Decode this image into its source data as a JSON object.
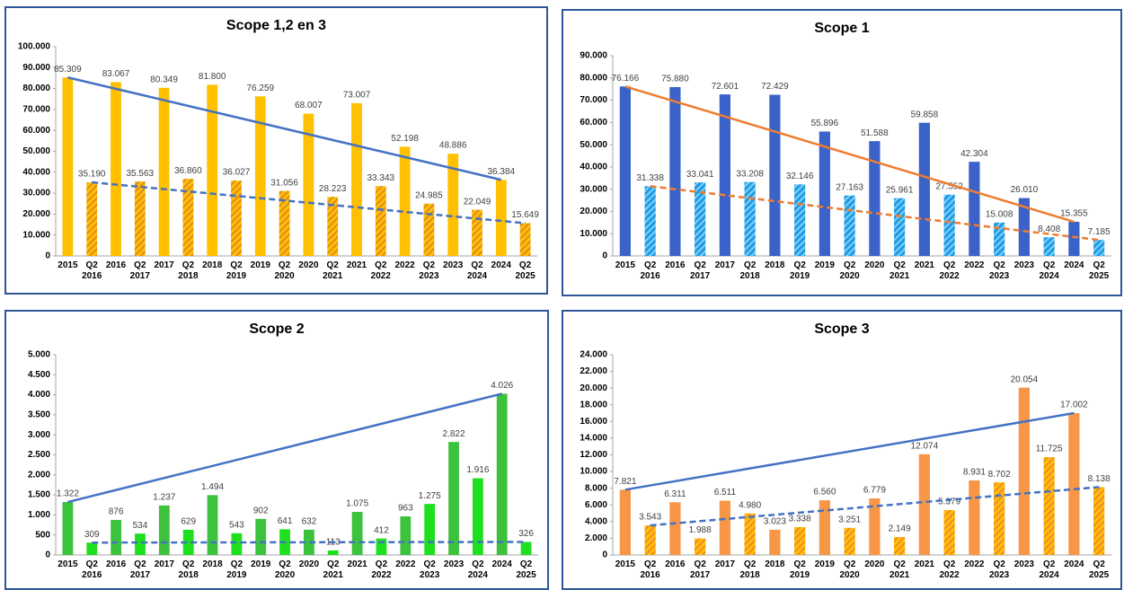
{
  "chart_data": [
    {
      "type": "bar",
      "title": "Scope 1,2 en 3",
      "categories": [
        "2015",
        "Q2 2016",
        "2016",
        "Q2 2017",
        "2017",
        "Q2 2018",
        "2018",
        "Q2 2019",
        "2019",
        "Q2 2020",
        "2020",
        "Q2 2021",
        "2021",
        "Q2 2022",
        "2022",
        "Q2 2023",
        "2023",
        "Q2 2024",
        "2024",
        "Q2 2025"
      ],
      "values": [
        85309,
        35190,
        83067,
        35563,
        80349,
        36860,
        81800,
        36027,
        76259,
        31056,
        68007,
        28223,
        73007,
        33343,
        52198,
        24985,
        48886,
        22049,
        36384,
        15649
      ],
      "value_labels": [
        "85.309",
        "35.190",
        "83.067",
        "35.563",
        "80.349",
        "36.860",
        "81.800",
        "36.027",
        "76.259",
        "31.056",
        "68.007",
        "28.223",
        "73.007",
        "33.343",
        "52.198",
        "24.985",
        "48.886",
        "22.049",
        "36.384",
        "15.649"
      ],
      "bar_colors": [
        "#ffc000",
        "#ffc000"
      ],
      "hatch_color": "#e08a1e",
      "trend_color": "#4472c4",
      "ylim": [
        0,
        100000
      ],
      "yticks": [
        0,
        {
          "value": 10000,
          "label": "10.000"
        },
        {
          "value": 20000,
          "label": "20.000"
        },
        {
          "value": 30000,
          "label": "30.000"
        },
        {
          "value": 40000,
          "label": "40.000"
        },
        {
          "value": 50000,
          "label": "50.000"
        },
        {
          "value": 60000,
          "label": "60.000"
        },
        {
          "value": 70000,
          "label": "70.000"
        },
        {
          "value": 80000,
          "label": "80.000"
        },
        {
          "value": 90000,
          "label": "90.000"
        },
        {
          "value": 100000,
          "label": "100.000"
        }
      ]
    },
    {
      "type": "bar",
      "title": "Scope 1",
      "categories": [
        "2015",
        "Q2 2016",
        "2016",
        "Q2 2017",
        "2017",
        "Q2 2018",
        "2018",
        "Q2 2019",
        "2019",
        "Q2 2020",
        "2020",
        "Q2 2021",
        "2021",
        "Q2 2022",
        "2022",
        "Q2 2023",
        "2023",
        "Q2 2024",
        "2024",
        "Q2 2025"
      ],
      "values": [
        76166,
        31338,
        75880,
        33041,
        72601,
        33208,
        72429,
        32146,
        55896,
        27163,
        51588,
        25961,
        59858,
        27552,
        42304,
        15008,
        26010,
        8408,
        15355,
        7185
      ],
      "value_labels": [
        "76.166",
        "31.338",
        "75.880",
        "33.041",
        "72.601",
        "33.208",
        "72.429",
        "32.146",
        "55.896",
        "27.163",
        "51.588",
        "25.961",
        "59.858",
        "27.552",
        "42.304",
        "15.008",
        "26.010",
        "8.408",
        "15.355",
        "7.185"
      ],
      "bar_colors": [
        "#3a62c8",
        "#1e9be0"
      ],
      "hatch_color": "#7fd0ff",
      "trend_color": "#ed7d31",
      "ylim": [
        0,
        90000
      ],
      "yticks": [
        0,
        {
          "value": 10000,
          "label": "10.000"
        },
        {
          "value": 20000,
          "label": "20.000"
        },
        {
          "value": 30000,
          "label": "30.000"
        },
        {
          "value": 40000,
          "label": "40.000"
        },
        {
          "value": 50000,
          "label": "50.000"
        },
        {
          "value": 60000,
          "label": "60.000"
        },
        {
          "value": 70000,
          "label": "70.000"
        },
        {
          "value": 80000,
          "label": "80.000"
        },
        {
          "value": 90000,
          "label": "90.000"
        }
      ]
    },
    {
      "type": "bar",
      "title": "Scope 2",
      "categories": [
        "2015",
        "Q2 2016",
        "2016",
        "Q2 2017",
        "2017",
        "Q2 2018",
        "2018",
        "Q2 2019",
        "2019",
        "Q2 2020",
        "2020",
        "Q2 2021",
        "2021",
        "Q2 2022",
        "2022",
        "Q2 2023",
        "2023",
        "Q2 2024",
        "2024",
        "Q2 2025"
      ],
      "values": [
        1322,
        309,
        876,
        534,
        1237,
        629,
        1494,
        543,
        902,
        641,
        632,
        113,
        1075,
        412,
        963,
        1275,
        2822,
        1916,
        4026,
        326
      ],
      "value_labels": [
        "1.322",
        "309",
        "876",
        "534",
        "1.237",
        "629",
        "1.494",
        "543",
        "902",
        "641",
        "632",
        "113",
        "1.075",
        "412",
        "963",
        "1.275",
        "2.822",
        "1.916",
        "4.026",
        "326"
      ],
      "bar_colors": [
        "#3cc23c",
        "#1ee01e"
      ],
      "trend_color": "#4472c4",
      "ylim": [
        0,
        5000
      ],
      "yticks": [
        0,
        500,
        {
          "value": 1000,
          "label": "1.000"
        },
        {
          "value": 1500,
          "label": "1.500"
        },
        {
          "value": 2000,
          "label": "2.000"
        },
        {
          "value": 2500,
          "label": "2.500"
        },
        {
          "value": 3000,
          "label": "3.000"
        },
        {
          "value": 3500,
          "label": "3.500"
        },
        {
          "value": 4000,
          "label": "4.000"
        },
        {
          "value": 4500,
          "label": "4.500"
        },
        {
          "value": 5000,
          "label": "5.000"
        }
      ]
    },
    {
      "type": "bar",
      "title": "Scope  3",
      "categories": [
        "2015",
        "Q2 2016",
        "2016",
        "Q2 2017",
        "2017",
        "Q2 2018",
        "2018",
        "Q2 2019",
        "2019",
        "Q2 2020",
        "2020",
        "Q2 2021",
        "2021",
        "Q2 2022",
        "2022",
        "Q2 2023",
        "2023",
        "Q2 2024",
        "2024",
        "Q2 2025"
      ],
      "values": [
        7821,
        3543,
        6311,
        1988,
        6511,
        4980,
        3023,
        3338,
        6560,
        3251,
        6779,
        2149,
        12074,
        5379,
        8931,
        8702,
        20054,
        11725,
        17002,
        8138
      ],
      "value_labels": [
        "7.821",
        "3.543",
        "6.311",
        "1.988",
        "6.511",
        "4.980",
        "3.023",
        "3.338",
        "6.560",
        "3.251",
        "6.779",
        "2.149",
        "12.074",
        "5.379",
        "8.931",
        "8.702",
        "20.054",
        "11.725",
        "17.002",
        "8.138"
      ],
      "bar_colors": [
        "#f79646",
        "#ffc000"
      ],
      "hatch_color": "#f08a30",
      "trend_color": "#4472c4",
      "ylim": [
        0,
        24000
      ],
      "yticks": [
        0,
        {
          "value": 2000,
          "label": "2.000"
        },
        {
          "value": 4000,
          "label": "4.000"
        },
        {
          "value": 6000,
          "label": "6.000"
        },
        {
          "value": 8000,
          "label": "8.000"
        },
        {
          "value": 10000,
          "label": "10.000"
        },
        {
          "value": 12000,
          "label": "12.000"
        },
        {
          "value": 14000,
          "label": "14.000"
        },
        {
          "value": 16000,
          "label": "16.000"
        },
        {
          "value": 18000,
          "label": "18.000"
        },
        {
          "value": 20000,
          "label": "20.000"
        },
        {
          "value": 22000,
          "label": "22.000"
        },
        {
          "value": 24000,
          "label": "24.000"
        }
      ]
    }
  ]
}
